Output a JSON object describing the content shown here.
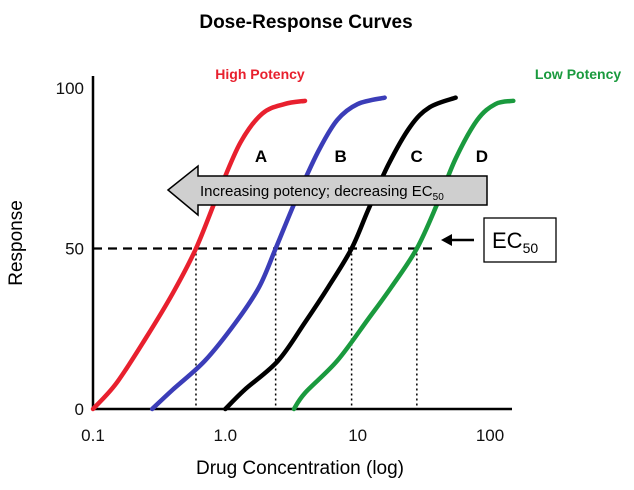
{
  "chart_data": {
    "type": "line",
    "title": "Dose-Response Curves",
    "xlabel": "Drug Concentration (log)",
    "ylabel": "Response",
    "x_scale": "log",
    "xlim": [
      0.1,
      100
    ],
    "ylim": [
      0,
      100
    ],
    "x_ticks": [
      "0.1",
      "1.0",
      "10",
      "100"
    ],
    "y_ticks": [
      "0",
      "50",
      "100"
    ],
    "grid": false,
    "series": [
      {
        "name": "A",
        "color": "#e8202e",
        "ec50": 0.6,
        "points": [
          [
            0.1,
            0
          ],
          [
            0.15,
            8
          ],
          [
            0.25,
            22
          ],
          [
            0.4,
            36
          ],
          [
            0.6,
            50
          ],
          [
            0.9,
            68
          ],
          [
            1.3,
            83
          ],
          [
            1.9,
            92
          ],
          [
            2.8,
            95
          ],
          [
            4,
            96
          ]
        ]
      },
      {
        "name": "B",
        "color": "#3b3db8",
        "ec50": 2.4,
        "points": [
          [
            0.28,
            0
          ],
          [
            0.4,
            6
          ],
          [
            0.7,
            15
          ],
          [
            1.2,
            27
          ],
          [
            1.8,
            38
          ],
          [
            2.4,
            50
          ],
          [
            3.4,
            65
          ],
          [
            5,
            80
          ],
          [
            7,
            90
          ],
          [
            10,
            95
          ],
          [
            16,
            97
          ]
        ]
      },
      {
        "name": "C",
        "color": "#000000",
        "ec50": 9.0,
        "points": [
          [
            1.0,
            0
          ],
          [
            1.4,
            6
          ],
          [
            2.5,
            15
          ],
          [
            4,
            27
          ],
          [
            6,
            38
          ],
          [
            9,
            50
          ],
          [
            12,
            62
          ],
          [
            17,
            76
          ],
          [
            25,
            88
          ],
          [
            35,
            94
          ],
          [
            55,
            97
          ]
        ]
      },
      {
        "name": "D",
        "color": "#1a9a3e",
        "ec50": 28,
        "points": [
          [
            3.3,
            0
          ],
          [
            4,
            5
          ],
          [
            7,
            15
          ],
          [
            12,
            28
          ],
          [
            18,
            38
          ],
          [
            28,
            50
          ],
          [
            40,
            64
          ],
          [
            55,
            78
          ],
          [
            80,
            90
          ],
          [
            110,
            95
          ],
          [
            150,
            96
          ]
        ]
      }
    ],
    "reference_line": {
      "y": 50,
      "style": "dashed"
    },
    "annotations": {
      "high_potency": "High Potency",
      "low_potency": "Low Potency",
      "arrow_text_main": "Increasing potency; decreasing EC",
      "arrow_text_sub": "50",
      "ec_label_main": "EC",
      "ec_label_sub": "50"
    }
  }
}
